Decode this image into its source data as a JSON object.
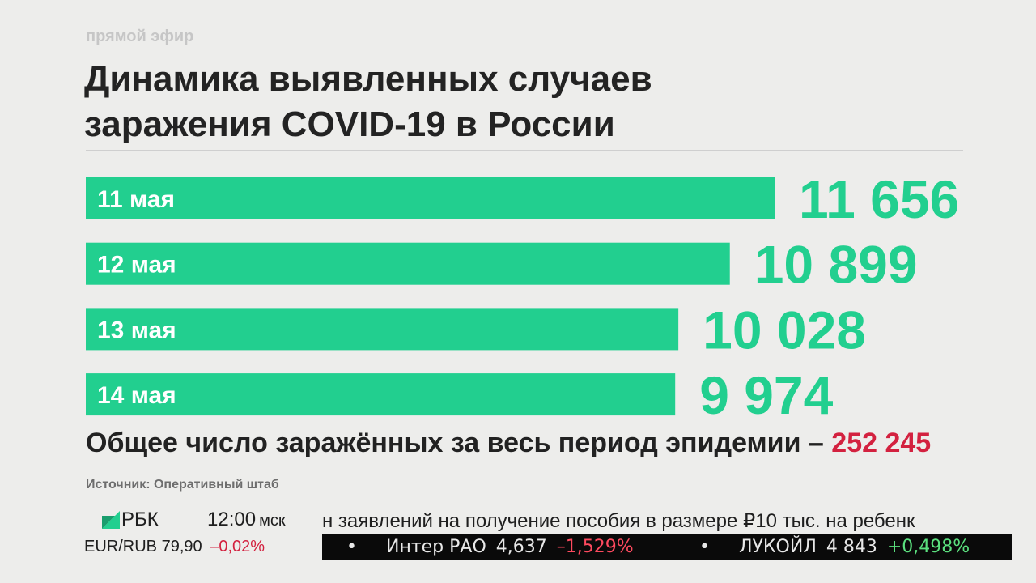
{
  "header": {
    "live_label": "прямой эфир",
    "title_line1": "Динамика выявленных случаев",
    "title_line2": "заражения COVID-19 в России"
  },
  "chart_data": {
    "type": "bar",
    "orientation": "horizontal",
    "categories": [
      "11 мая",
      "12 мая",
      "13 мая",
      "14 мая"
    ],
    "values": [
      11656,
      10899,
      10028,
      9974
    ],
    "value_labels": [
      "11 656",
      "10 899",
      "10 028",
      "9 974"
    ],
    "bar_color": "#22cf8f",
    "label_color": "#22cf8f"
  },
  "total": {
    "label": "Общее число заражённых за весь период эпидемии –",
    "value": "252 245",
    "value_color": "#d3213f"
  },
  "source": "Источник: Оперативный штаб",
  "ticker": {
    "logo_icon": "rbc-logo-icon",
    "logo_text": "РБК",
    "time": "12:00",
    "timezone": "мск",
    "crawl_text": "н заявлений на получение пособия в размере ₽10 тыс. на ребенк",
    "fx_pair": "EUR/RUB",
    "fx_value": "79,90",
    "fx_change": "–0,02%",
    "stocks": [
      {
        "name": "Интер РАО",
        "price": "4,637",
        "change": "–1,529%",
        "direction": "down"
      },
      {
        "name": "ЛУКОЙЛ",
        "price": "4 843",
        "change": "+0,498%",
        "direction": "up"
      }
    ]
  }
}
